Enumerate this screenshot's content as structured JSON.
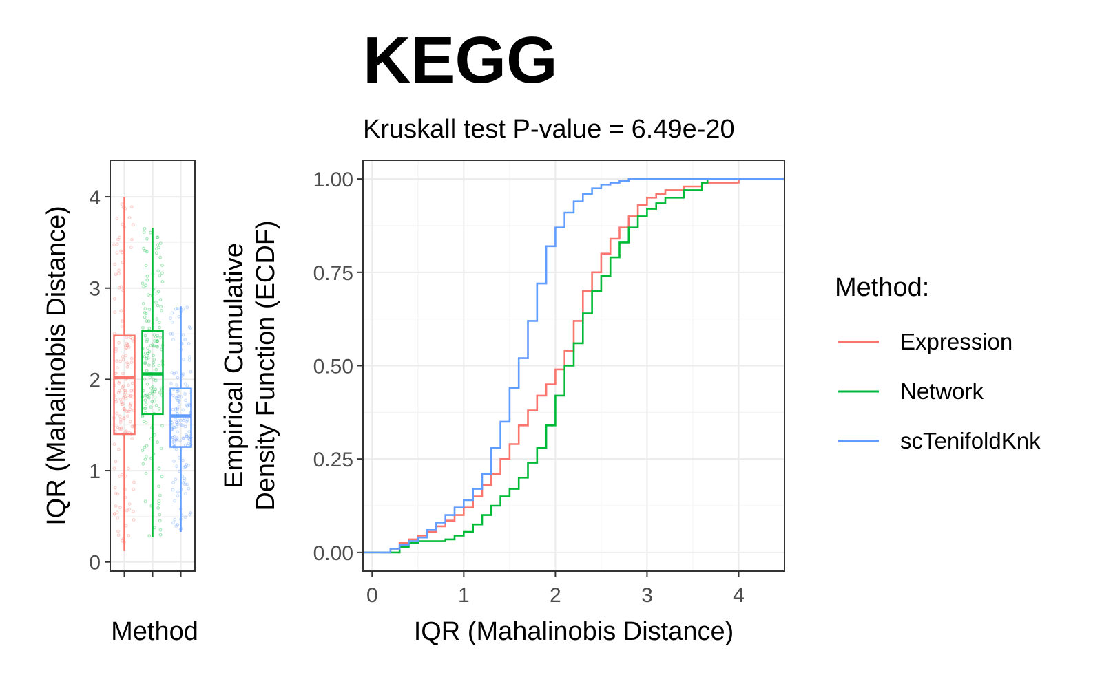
{
  "title": "KEGG",
  "subtitle": "Kruskall test P-value = 6.49e-20",
  "legend": {
    "title": "Method:",
    "position": "right",
    "items": [
      {
        "label": "Expression",
        "color": "#F8766D"
      },
      {
        "label": "Network",
        "color": "#00BA38"
      },
      {
        "label": "scTenifoldKnk",
        "color": "#619CFF"
      }
    ]
  },
  "chart_data": [
    {
      "type": "box",
      "xlabel": "Method",
      "ylabel": "IQR (Mahalinobis Distance)",
      "ylim": [
        -0.1,
        4.4
      ],
      "yticks": [
        "0",
        "1",
        "2",
        "3",
        "4"
      ],
      "grid": true,
      "series": [
        {
          "name": "Expression",
          "color": "#F8766D",
          "min": 0.12,
          "q1": 1.4,
          "median": 2.02,
          "q3": 2.48,
          "max": 4.0
        },
        {
          "name": "Network",
          "color": "#00BA38",
          "min": 0.27,
          "q1": 1.62,
          "median": 2.06,
          "q3": 2.53,
          "max": 3.66
        },
        {
          "name": "scTenifoldKnk",
          "color": "#619CFF",
          "min": 0.33,
          "q1": 1.26,
          "median": 1.6,
          "q3": 1.9,
          "max": 2.8
        }
      ]
    },
    {
      "type": "line",
      "xlabel": "IQR (Mahalinobis Distance)",
      "ylabel": "Empirical Cumulative\nDensity Function (ECDF)",
      "xlim": [
        -0.1,
        4.5
      ],
      "ylim": [
        -0.05,
        1.05
      ],
      "xticks": [
        "0",
        "1",
        "2",
        "3",
        "4"
      ],
      "yticks": [
        "0.00",
        "0.25",
        "0.50",
        "0.75",
        "1.00"
      ],
      "grid": true,
      "series": [
        {
          "name": "Expression",
          "color": "#F8766D",
          "x": [
            0.12,
            0.2,
            0.3,
            0.4,
            0.5,
            0.6,
            0.7,
            0.8,
            0.9,
            1.0,
            1.1,
            1.2,
            1.3,
            1.4,
            1.5,
            1.6,
            1.7,
            1.8,
            1.9,
            2.0,
            2.1,
            2.2,
            2.3,
            2.4,
            2.5,
            2.6,
            2.7,
            2.8,
            2.9,
            3.0,
            3.1,
            3.2,
            3.4,
            3.6,
            4.0
          ],
          "y": [
            0.0,
            0.01,
            0.025,
            0.035,
            0.045,
            0.055,
            0.07,
            0.085,
            0.1,
            0.12,
            0.15,
            0.18,
            0.21,
            0.25,
            0.29,
            0.34,
            0.38,
            0.42,
            0.45,
            0.49,
            0.54,
            0.62,
            0.7,
            0.75,
            0.8,
            0.84,
            0.87,
            0.9,
            0.93,
            0.95,
            0.96,
            0.97,
            0.98,
            0.99,
            1.0
          ]
        },
        {
          "name": "Network",
          "color": "#00BA38",
          "x": [
            0.2,
            0.3,
            0.4,
            0.5,
            0.6,
            0.7,
            0.8,
            0.9,
            1.0,
            1.1,
            1.2,
            1.3,
            1.4,
            1.5,
            1.6,
            1.7,
            1.8,
            1.9,
            2.0,
            2.1,
            2.2,
            2.3,
            2.4,
            2.5,
            2.6,
            2.7,
            2.8,
            2.9,
            3.0,
            3.1,
            3.2,
            3.4,
            3.6,
            3.66
          ],
          "y": [
            0.0,
            0.015,
            0.025,
            0.03,
            0.03,
            0.03,
            0.035,
            0.045,
            0.055,
            0.075,
            0.1,
            0.125,
            0.15,
            0.17,
            0.2,
            0.24,
            0.28,
            0.34,
            0.42,
            0.5,
            0.56,
            0.64,
            0.7,
            0.74,
            0.79,
            0.83,
            0.87,
            0.9,
            0.92,
            0.935,
            0.95,
            0.97,
            0.99,
            1.0
          ]
        },
        {
          "name": "scTenifoldKnk",
          "color": "#619CFF",
          "x": [
            0.1,
            0.2,
            0.3,
            0.4,
            0.5,
            0.6,
            0.7,
            0.8,
            0.9,
            1.0,
            1.1,
            1.2,
            1.3,
            1.4,
            1.5,
            1.6,
            1.7,
            1.8,
            1.9,
            2.0,
            2.1,
            2.2,
            2.3,
            2.4,
            2.5,
            2.6,
            2.7,
            2.8
          ],
          "y": [
            0.0,
            0.01,
            0.02,
            0.03,
            0.04,
            0.06,
            0.08,
            0.1,
            0.12,
            0.14,
            0.17,
            0.21,
            0.28,
            0.35,
            0.44,
            0.52,
            0.62,
            0.72,
            0.82,
            0.87,
            0.91,
            0.94,
            0.96,
            0.975,
            0.985,
            0.99,
            0.995,
            1.0
          ]
        }
      ]
    }
  ]
}
